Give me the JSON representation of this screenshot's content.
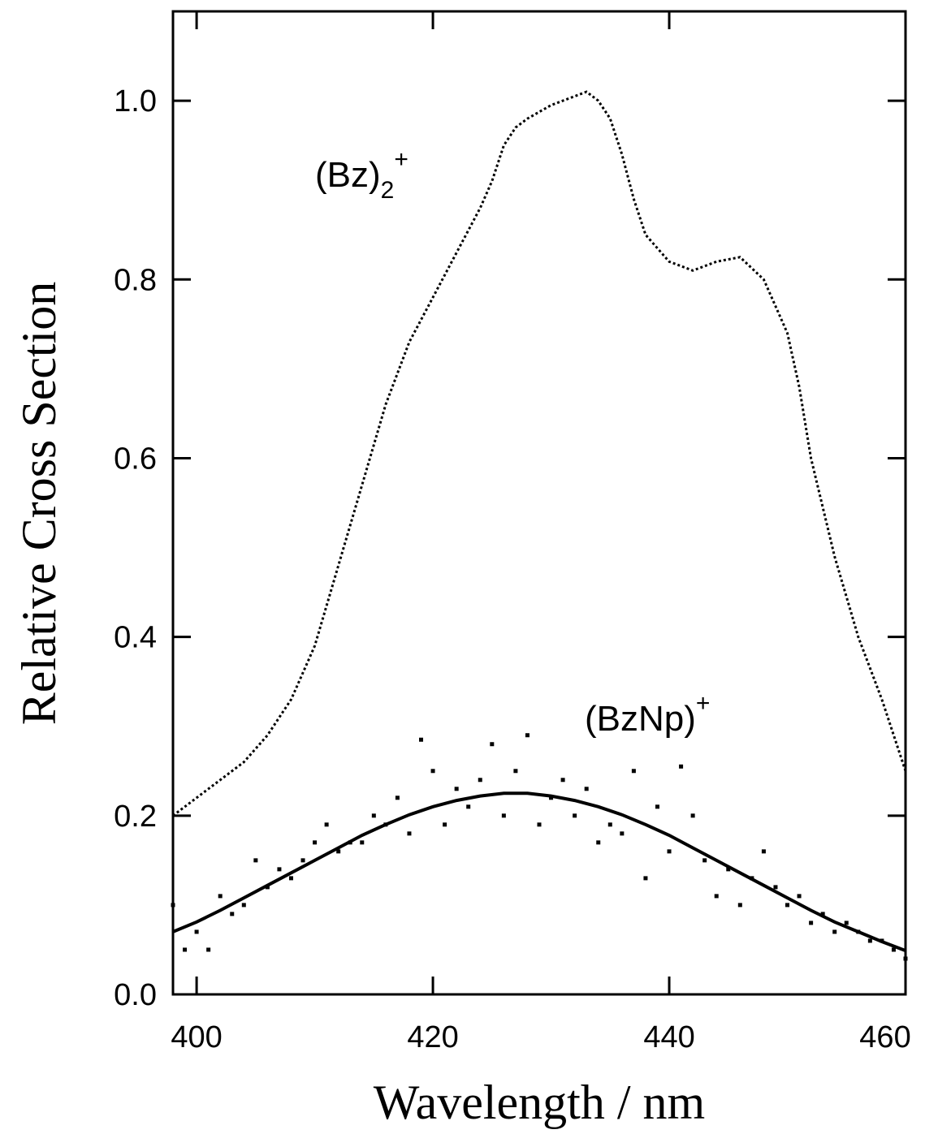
{
  "chart_data": {
    "type": "line",
    "x_label": "Wavelength / nm",
    "y_label": "Relative Cross Section",
    "xlim": [
      398,
      460
    ],
    "xticks": [
      400,
      420,
      440,
      460
    ],
    "ylim": [
      0,
      1.1
    ],
    "yticks": [
      {
        "value": 0,
        "label": "0.0"
      },
      0.2,
      0.4,
      0.6,
      0.8,
      {
        "value": 1,
        "label": "1.0"
      }
    ],
    "annotations": [
      {
        "text": "(Bz)",
        "sub": "2",
        "sup": "+"
      },
      {
        "text": "(BzNp)",
        "sup": "+"
      }
    ],
    "series": [
      {
        "style": "dotted",
        "color": "#000000",
        "x": [
          398,
          400,
          402,
          404,
          406,
          408,
          410,
          412,
          414,
          416,
          418,
          420,
          422,
          424,
          425,
          426,
          427,
          428,
          430,
          432,
          433,
          434,
          435,
          436,
          437,
          438,
          440,
          442,
          444,
          446,
          448,
          449,
          450,
          451,
          452,
          454,
          456,
          458,
          460
        ],
        "values": [
          0.2,
          0.22,
          0.24,
          0.26,
          0.29,
          0.33,
          0.39,
          0.48,
          0.57,
          0.66,
          0.73,
          0.78,
          0.83,
          0.88,
          0.91,
          0.95,
          0.97,
          0.98,
          0.995,
          1.005,
          1.01,
          1.0,
          0.98,
          0.94,
          0.89,
          0.85,
          0.82,
          0.81,
          0.82,
          0.825,
          0.8,
          0.77,
          0.74,
          0.68,
          0.6,
          0.49,
          0.4,
          0.33,
          0.25
        ]
      },
      {
        "style": "solid",
        "color": "#000000",
        "x": [
          398,
          400,
          402,
          404,
          406,
          408,
          410,
          412,
          414,
          416,
          418,
          420,
          422,
          424,
          426,
          427,
          428,
          430,
          432,
          434,
          436,
          438,
          440,
          442,
          444,
          446,
          448,
          450,
          452,
          454,
          456,
          458,
          460
        ],
        "values": [
          0.07,
          0.081,
          0.094,
          0.108,
          0.122,
          0.136,
          0.15,
          0.164,
          0.178,
          0.19,
          0.201,
          0.21,
          0.217,
          0.222,
          0.225,
          0.225,
          0.225,
          0.222,
          0.217,
          0.21,
          0.201,
          0.19,
          0.178,
          0.164,
          0.15,
          0.136,
          0.122,
          0.108,
          0.094,
          0.081,
          0.07,
          0.059,
          0.049
        ]
      },
      {
        "style": "points",
        "color": "#000000",
        "x": [
          398,
          399,
          400,
          401,
          402,
          403,
          404,
          405,
          406,
          407,
          408,
          409,
          410,
          411,
          412,
          413,
          414,
          415,
          416,
          417,
          418,
          419,
          420,
          421,
          422,
          423,
          424,
          425,
          426,
          427,
          428,
          429,
          430,
          431,
          432,
          433,
          434,
          435,
          436,
          437,
          438,
          439,
          440,
          441,
          442,
          443,
          444,
          445,
          446,
          447,
          448,
          449,
          450,
          451,
          452,
          453,
          454,
          455,
          456,
          457,
          458,
          459,
          460
        ],
        "values": [
          0.1,
          0.05,
          0.07,
          0.05,
          0.11,
          0.09,
          0.1,
          0.15,
          0.12,
          0.14,
          0.13,
          0.15,
          0.17,
          0.19,
          0.16,
          0.17,
          0.17,
          0.2,
          0.19,
          0.22,
          0.18,
          0.285,
          0.25,
          0.19,
          0.23,
          0.21,
          0.24,
          0.28,
          0.2,
          0.25,
          0.29,
          0.19,
          0.22,
          0.24,
          0.2,
          0.23,
          0.17,
          0.19,
          0.18,
          0.25,
          0.13,
          0.21,
          0.16,
          0.255,
          0.2,
          0.15,
          0.11,
          0.14,
          0.1,
          0.13,
          0.16,
          0.12,
          0.1,
          0.11,
          0.08,
          0.09,
          0.07,
          0.08,
          0.07,
          0.06,
          0.06,
          0.05,
          0.04
        ]
      }
    ]
  }
}
